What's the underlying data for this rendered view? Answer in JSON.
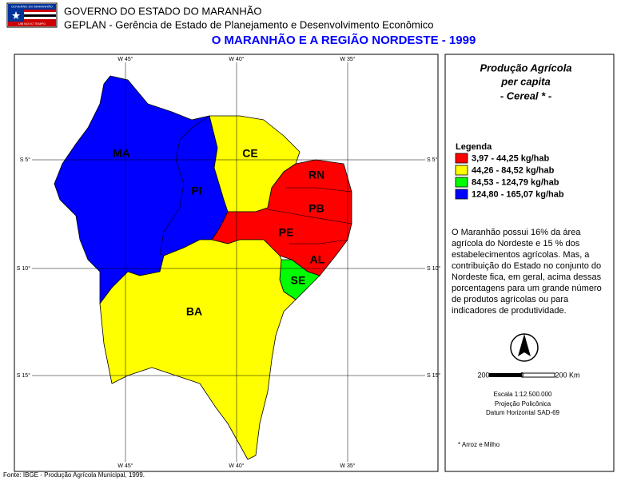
{
  "header": {
    "logo_top": "GOVERNO DO MARANHÃO",
    "logo_bottom": "UM NOVO TEMPO",
    "org": "GOVERNO DO ESTADO DO MARANHÃO",
    "dept": "GEPLAN - Gerência de Estado de Planejamento e Desenvolvimento Econômico",
    "title": "O MARANHÃO E A REGIÃO NORDESTE - 1999"
  },
  "map": {
    "meridians": [
      "W 45°",
      "W 40°",
      "W 35°"
    ],
    "parallels": [
      "S 5°",
      "S 10°",
      "S 15°"
    ],
    "states": [
      {
        "name": "MA",
        "color": "#0000ff"
      },
      {
        "name": "PI",
        "color": "#0000ff"
      },
      {
        "name": "CE",
        "color": "#ffff00"
      },
      {
        "name": "RN",
        "color": "#ff0000"
      },
      {
        "name": "PB",
        "color": "#ff0000"
      },
      {
        "name": "PE",
        "color": "#ff0000"
      },
      {
        "name": "AL",
        "color": "#ff0000"
      },
      {
        "name": "SE",
        "color": "#00ff00"
      },
      {
        "name": "BA",
        "color": "#ffff00"
      }
    ]
  },
  "panel": {
    "title": [
      "Produção Agrícola",
      "per capita",
      "- Cereal * -"
    ],
    "legend_title": "Legenda",
    "legend": [
      {
        "label": "3,97 - 44,25 kg/hab",
        "color": "#ff0000"
      },
      {
        "label": "44,26 - 84,52 kg/hab",
        "color": "#ffff00"
      },
      {
        "label": "84,53 - 124,79 kg/hab",
        "color": "#00ff00"
      },
      {
        "label": "124,80 - 165,07 kg/hab",
        "color": "#0000ff"
      }
    ],
    "description": "O Maranhão possui 16% da área agrícola do Nordeste e 15 % dos estabelecimentos agrícolas. Mas, a contribuição do Estado no conjunto do Nordeste fica, em geral, acima dessas porcentagens para um grande número de produtos agrícolas ou para indicadores de produtividade.",
    "scale_labels": [
      "200",
      "0",
      "200 Km"
    ],
    "scale_text": [
      "Escala 1:12.500.000",
      "Projeção Policônica",
      "Datum Horizontal SAD-69"
    ],
    "footnote": "* Arroz e Milho"
  },
  "source": "Fonte: IBGE - Produção Agrícola Municipal, 1999."
}
